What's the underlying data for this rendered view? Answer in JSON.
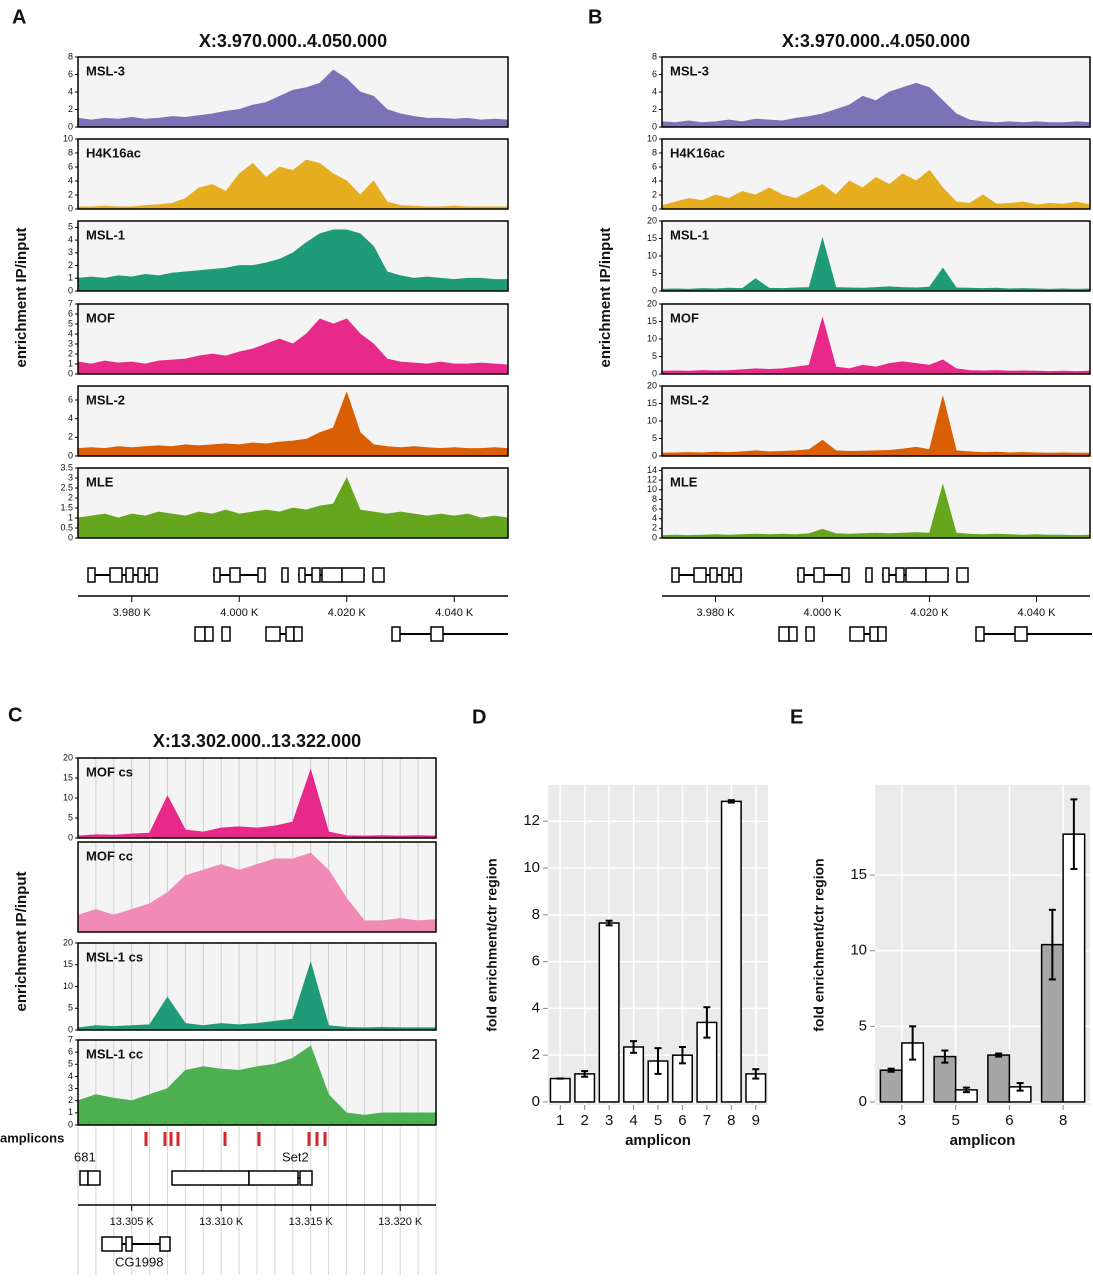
{
  "chart_data": [
    {
      "type": "tracks",
      "panel_label": "A",
      "title": "X:3.970.000..4.050.000",
      "y_label": "enrichment IP/input",
      "xlim": [
        3970,
        4050
      ],
      "xticks": [
        {
          "value": 3980,
          "label": "3.980 K"
        },
        {
          "value": 4000,
          "label": "4.000 K"
        },
        {
          "value": 4020,
          "label": "4.020 K"
        },
        {
          "value": 4040,
          "label": "4.040 K"
        }
      ],
      "x": [
        3970,
        3972.5,
        3975,
        3977.5,
        3980,
        3982.5,
        3985,
        3987.5,
        3990,
        3992.5,
        3995,
        3997.5,
        4000,
        4002.5,
        4005,
        4007.5,
        4010,
        4012.5,
        4015,
        4017.5,
        4020,
        4022.5,
        4025,
        4027.5,
        4030,
        4032.5,
        4035,
        4037.5,
        4040,
        4042.5,
        4045,
        4047.5,
        4050
      ],
      "tracks": [
        {
          "name": "MSL-3",
          "color": "#7b72b7",
          "ylim": [
            0,
            8
          ],
          "yticks": [
            0,
            2,
            4,
            6,
            8
          ],
          "values": [
            1.0,
            0.8,
            1.0,
            0.9,
            1.1,
            0.9,
            1.0,
            1.2,
            1.1,
            1.3,
            1.5,
            1.8,
            2.0,
            2.5,
            2.8,
            3.5,
            4.2,
            4.5,
            5.0,
            6.5,
            5.5,
            4.0,
            3.5,
            2.0,
            1.5,
            1.2,
            1.0,
            1.0,
            0.9,
            1.0,
            0.8,
            0.9,
            0.8
          ]
        },
        {
          "name": "H4K16ac",
          "color": "#e6ad1e",
          "ylim": [
            0,
            10
          ],
          "yticks": [
            0,
            2,
            4,
            6,
            8,
            10
          ],
          "values": [
            0.3,
            0.3,
            0.4,
            0.3,
            0.3,
            0.5,
            0.6,
            0.8,
            1.5,
            3.0,
            3.5,
            2.5,
            5.0,
            6.5,
            4.5,
            6.0,
            5.5,
            7.0,
            6.5,
            5.0,
            4.0,
            2.0,
            4.0,
            1.0,
            0.5,
            0.4,
            0.3,
            0.3,
            0.4,
            0.3,
            0.3,
            0.3,
            0.3
          ]
        },
        {
          "name": "MSL-1",
          "color": "#1f9b77",
          "ylim": [
            0,
            5.5
          ],
          "yticks": [
            0,
            1,
            2,
            3,
            4,
            5
          ],
          "values": [
            1.0,
            1.1,
            1.0,
            1.2,
            1.1,
            1.3,
            1.2,
            1.4,
            1.5,
            1.6,
            1.7,
            1.8,
            2.0,
            2.0,
            2.2,
            2.5,
            3.0,
            3.8,
            4.5,
            4.8,
            4.8,
            4.5,
            3.5,
            1.5,
            1.2,
            1.0,
            1.1,
            1.0,
            0.9,
            1.0,
            1.0,
            0.9,
            0.9
          ]
        },
        {
          "name": "MOF",
          "color": "#e7298a",
          "ylim": [
            0,
            7
          ],
          "yticks": [
            0,
            1,
            2,
            3,
            4,
            5,
            6,
            7
          ],
          "values": [
            1.2,
            1.0,
            1.3,
            1.1,
            1.2,
            1.0,
            1.3,
            1.4,
            1.5,
            1.8,
            2.0,
            1.8,
            2.2,
            2.5,
            3.0,
            3.5,
            3.0,
            4.0,
            5.5,
            5.0,
            5.5,
            4.0,
            3.0,
            1.5,
            1.2,
            1.1,
            1.0,
            1.2,
            1.0,
            1.0,
            1.1,
            1.0,
            0.9
          ]
        },
        {
          "name": "MSL-2",
          "color": "#d95f02",
          "ylim": [
            0,
            7.5
          ],
          "yticks": [
            0,
            2,
            4,
            6
          ],
          "values": [
            0.8,
            0.9,
            0.8,
            1.0,
            0.9,
            1.0,
            1.1,
            1.0,
            1.2,
            1.1,
            1.2,
            1.3,
            1.2,
            1.4,
            1.3,
            1.5,
            1.6,
            1.8,
            2.5,
            3.0,
            6.8,
            2.5,
            1.2,
            1.0,
            0.9,
            1.0,
            0.9,
            0.8,
            0.9,
            0.8,
            0.8,
            0.9,
            0.8
          ]
        },
        {
          "name": "MLE",
          "color": "#66a61e",
          "ylim": [
            0,
            3.5
          ],
          "yticks": [
            0,
            0.5,
            1,
            1.5,
            2,
            2.5,
            3,
            3.5
          ],
          "values": [
            1.0,
            1.1,
            1.2,
            1.0,
            1.2,
            1.1,
            1.3,
            1.2,
            1.1,
            1.3,
            1.2,
            1.4,
            1.2,
            1.3,
            1.4,
            1.3,
            1.5,
            1.4,
            1.6,
            1.7,
            3.0,
            1.4,
            1.3,
            1.2,
            1.3,
            1.2,
            1.1,
            1.2,
            1.1,
            1.2,
            1.0,
            1.1,
            1.0
          ]
        }
      ]
    },
    {
      "type": "tracks",
      "panel_label": "B",
      "title": "X:3.970.000..4.050.000",
      "y_label": "enrichment IP/input",
      "xlim": [
        3970,
        4050
      ],
      "xticks": [
        {
          "value": 3980,
          "label": "3.980 K"
        },
        {
          "value": 4000,
          "label": "4.000 K"
        },
        {
          "value": 4020,
          "label": "4.020 K"
        },
        {
          "value": 4040,
          "label": "4.040 K"
        }
      ],
      "x": [
        3970,
        3972.5,
        3975,
        3977.5,
        3980,
        3982.5,
        3985,
        3987.5,
        3990,
        3992.5,
        3995,
        3997.5,
        4000,
        4002.5,
        4005,
        4007.5,
        4010,
        4012.5,
        4015,
        4017.5,
        4020,
        4022.5,
        4025,
        4027.5,
        4030,
        4032.5,
        4035,
        4037.5,
        4040,
        4042.5,
        4045,
        4047.5,
        4050
      ],
      "tracks": [
        {
          "name": "MSL-3",
          "color": "#7b72b7",
          "ylim": [
            0,
            8
          ],
          "yticks": [
            0,
            2,
            4,
            6,
            8
          ],
          "values": [
            0.6,
            0.5,
            0.7,
            0.5,
            0.6,
            0.8,
            0.6,
            0.9,
            0.8,
            0.7,
            1.0,
            1.2,
            1.5,
            2.0,
            2.5,
            3.5,
            3.0,
            4.0,
            4.5,
            5.0,
            4.5,
            3.0,
            1.5,
            0.8,
            0.6,
            0.5,
            0.6,
            0.5,
            0.6,
            0.5,
            0.5,
            0.6,
            0.5
          ]
        },
        {
          "name": "H4K16ac",
          "color": "#e6ad1e",
          "ylim": [
            0,
            10
          ],
          "yticks": [
            0,
            2,
            4,
            6,
            8,
            10
          ],
          "values": [
            0.5,
            1.0,
            1.5,
            1.2,
            2.0,
            1.5,
            2.5,
            2.0,
            3.0,
            2.0,
            1.5,
            2.5,
            3.5,
            2.0,
            4.0,
            3.0,
            4.5,
            3.5,
            5.0,
            4.0,
            5.5,
            3.0,
            1.0,
            0.8,
            2.0,
            0.7,
            0.8,
            1.0,
            0.6,
            0.8,
            0.7,
            1.0,
            0.6
          ]
        },
        {
          "name": "MSL-1",
          "color": "#1f9b77",
          "ylim": [
            0,
            20
          ],
          "yticks": [
            0,
            5,
            10,
            15,
            20
          ],
          "values": [
            0.5,
            0.6,
            0.5,
            0.7,
            0.6,
            0.8,
            0.7,
            3.5,
            0.8,
            0.7,
            0.9,
            1.0,
            15.0,
            1.0,
            0.9,
            0.8,
            1.0,
            1.2,
            1.0,
            0.9,
            1.1,
            6.5,
            0.9,
            0.8,
            0.7,
            0.8,
            0.6,
            0.7,
            0.6,
            0.5,
            0.6,
            0.5,
            0.6
          ]
        },
        {
          "name": "MOF",
          "color": "#e7298a",
          "ylim": [
            0,
            20
          ],
          "yticks": [
            0,
            5,
            10,
            15,
            20
          ],
          "values": [
            0.8,
            0.9,
            0.8,
            1.0,
            0.9,
            1.0,
            1.2,
            1.5,
            1.3,
            1.5,
            2.0,
            2.5,
            16.0,
            2.0,
            1.5,
            2.5,
            2.0,
            3.0,
            3.5,
            3.0,
            2.5,
            4.0,
            1.5,
            1.0,
            0.9,
            1.0,
            0.8,
            0.9,
            0.8,
            0.7,
            0.8,
            0.7,
            0.8
          ]
        },
        {
          "name": "MSL-2",
          "color": "#d95f02",
          "ylim": [
            0,
            20
          ],
          "yticks": [
            0,
            5,
            10,
            15,
            20
          ],
          "values": [
            0.8,
            0.9,
            1.0,
            0.9,
            1.1,
            1.0,
            1.2,
            1.5,
            1.2,
            1.3,
            1.5,
            1.8,
            4.5,
            1.5,
            1.3,
            1.4,
            1.5,
            1.6,
            2.0,
            2.5,
            1.8,
            17.0,
            1.5,
            1.2,
            1.0,
            1.1,
            0.9,
            1.0,
            0.9,
            0.8,
            0.9,
            0.8,
            0.8
          ]
        },
        {
          "name": "MLE",
          "color": "#66a61e",
          "ylim": [
            0,
            14.5
          ],
          "yticks": [
            0,
            2,
            4,
            6,
            8,
            10,
            12,
            14
          ],
          "values": [
            0.5,
            0.6,
            0.5,
            0.6,
            0.7,
            0.6,
            0.7,
            0.8,
            0.7,
            0.8,
            0.7,
            0.9,
            1.8,
            0.9,
            0.8,
            0.9,
            1.0,
            0.9,
            1.0,
            1.1,
            1.0,
            11.0,
            1.0,
            0.8,
            0.7,
            0.8,
            0.7,
            0.6,
            0.7,
            0.6,
            0.6,
            0.5,
            0.6
          ]
        }
      ]
    },
    {
      "type": "tracks",
      "panel_label": "C",
      "title": "X:13.302.000..13.322.000",
      "y_label": "enrichment IP/input",
      "xlim": [
        13302,
        13322
      ],
      "xticks": [
        {
          "value": 13305,
          "label": "13.305 K"
        },
        {
          "value": 13310,
          "label": "13.310 K"
        },
        {
          "value": 13315,
          "label": "13.315 K"
        },
        {
          "value": 13320,
          "label": "13.320 K"
        }
      ],
      "x": [
        13302,
        13303,
        13304,
        13305,
        13306,
        13307,
        13308,
        13309,
        13310,
        13311,
        13312,
        13313,
        13314,
        13315,
        13316,
        13317,
        13318,
        13319,
        13320,
        13321,
        13322
      ],
      "vgrid": true,
      "amplicon_label": "amplicons",
      "gene_labels": [
        "681",
        "Set2",
        "CG1998"
      ],
      "tracks": [
        {
          "name": "MOF cs",
          "color": "#e7298a",
          "ylim": [
            0,
            20
          ],
          "yticks": [
            0,
            5,
            10,
            15,
            20
          ],
          "values": [
            0.5,
            0.8,
            0.7,
            1.0,
            1.2,
            10.5,
            2.0,
            1.5,
            2.5,
            2.8,
            2.5,
            3.0,
            4.0,
            17.0,
            1.5,
            0.6,
            0.5,
            0.6,
            0.5,
            0.6,
            0.5
          ]
        },
        {
          "name": "MOF cc",
          "color": "#f28ab8",
          "ylim": [
            0,
            8
          ],
          "values": [
            1.5,
            2.0,
            1.5,
            2.0,
            2.5,
            3.5,
            5.0,
            5.5,
            6.0,
            5.5,
            6.0,
            6.5,
            6.5,
            7.0,
            5.5,
            3.0,
            1.0,
            1.0,
            1.2,
            1.0,
            1.1
          ]
        },
        {
          "name": "MSL-1 cs",
          "color": "#1f9b77",
          "ylim": [
            0,
            20
          ],
          "yticks": [
            0,
            5,
            10,
            15,
            20
          ],
          "values": [
            0.5,
            1.0,
            0.8,
            1.0,
            1.2,
            7.5,
            1.5,
            1.0,
            1.5,
            1.2,
            1.5,
            2.0,
            2.5,
            15.5,
            1.0,
            0.6,
            0.5,
            0.6,
            0.5,
            0.5,
            0.5
          ]
        },
        {
          "name": "MSL-1 cc",
          "color": "#4caf50",
          "ylim": [
            0,
            7
          ],
          "yticks": [
            0,
            1,
            2,
            3,
            4,
            5,
            6,
            7
          ],
          "values": [
            2.0,
            2.5,
            2.2,
            2.0,
            2.5,
            3.0,
            4.5,
            4.8,
            4.6,
            4.5,
            4.8,
            5.0,
            5.5,
            6.5,
            2.5,
            1.0,
            0.8,
            1.0,
            1.0,
            1.0,
            1.0
          ]
        }
      ]
    },
    {
      "type": "bar",
      "panel_label": "D",
      "x_label": "amplicon",
      "y_label": "fold enrichment/ctr region",
      "categories": [
        "1",
        "2",
        "3",
        "4",
        "5",
        "6",
        "7",
        "8",
        "9"
      ],
      "ylim": [
        -0.13,
        13.55
      ],
      "yticks": [
        0,
        2,
        4,
        6,
        8,
        10,
        12
      ],
      "series": [
        {
          "color": "#ffffff",
          "values": [
            1.0,
            1.2,
            7.65,
            2.35,
            1.75,
            2.0,
            3.4,
            12.85,
            1.2
          ],
          "errors": [
            0,
            0.12,
            0.1,
            0.25,
            0.55,
            0.35,
            0.65,
            0.05,
            0.2
          ]
        }
      ]
    },
    {
      "type": "bar",
      "panel_label": "E",
      "x_label": "amplicon",
      "y_label": "fold enrichment/ctr region",
      "categories": [
        "3",
        "5",
        "6",
        "8"
      ],
      "ylim": [
        -0.2,
        20.95
      ],
      "yticks": [
        0,
        5,
        10,
        15
      ],
      "series": [
        {
          "color": "#a6a6a6",
          "values": [
            2.1,
            3.0,
            3.1,
            10.4
          ],
          "errors": [
            0.1,
            0.4,
            0.1,
            2.3
          ]
        },
        {
          "color": "#ffffff",
          "values": [
            3.9,
            0.8,
            1.0,
            17.7
          ],
          "errors": [
            1.1,
            0.15,
            0.25,
            2.3
          ]
        }
      ]
    }
  ]
}
